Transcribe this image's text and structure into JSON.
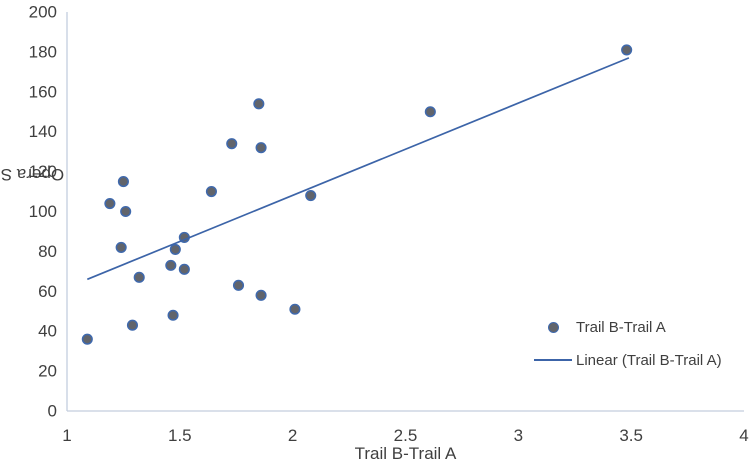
{
  "chart_data": {
    "type": "scatter",
    "title": "",
    "xlabel": "Trail B-Trail A",
    "ylabel": "Opera SDNN",
    "xlim": [
      1,
      4
    ],
    "ylim": [
      0,
      200
    ],
    "grid": false,
    "legend_position": "middle-right",
    "x_ticks": {
      "values": [
        1,
        1.5,
        2,
        2.5,
        3,
        3.5,
        4
      ],
      "labels": [
        "1",
        "1.5",
        "2",
        "2.5",
        "3",
        "3.5",
        "4"
      ]
    },
    "y_ticks": {
      "values": [
        0,
        20,
        40,
        60,
        80,
        100,
        120,
        140,
        160,
        180,
        200
      ],
      "labels": [
        "0",
        "20",
        "40",
        "60",
        "80",
        "100",
        "120",
        "140",
        "160",
        "180",
        "200"
      ]
    },
    "series": [
      {
        "name": "Trail B-Trail A",
        "kind": "scatter",
        "points": [
          [
            1.09,
            36
          ],
          [
            1.19,
            104
          ],
          [
            1.24,
            82
          ],
          [
            1.25,
            115
          ],
          [
            1.26,
            100
          ],
          [
            1.29,
            43
          ],
          [
            1.32,
            67
          ],
          [
            1.46,
            73
          ],
          [
            1.47,
            48
          ],
          [
            1.48,
            81
          ],
          [
            1.52,
            87
          ],
          [
            1.52,
            71
          ],
          [
            1.64,
            110
          ],
          [
            1.73,
            134
          ],
          [
            1.76,
            63
          ],
          [
            1.85,
            154
          ],
          [
            1.86,
            58
          ],
          [
            1.86,
            132
          ],
          [
            2.01,
            51
          ],
          [
            2.08,
            108
          ],
          [
            2.61,
            150
          ],
          [
            3.48,
            181
          ]
        ]
      },
      {
        "name": "Linear (Trail B-Trail A)",
        "kind": "line",
        "points": [
          [
            1.09,
            66
          ],
          [
            3.49,
            177
          ]
        ]
      }
    ],
    "colors": {
      "marker_fill": "#61646b",
      "marker_stroke": "#3f69ad",
      "trend_line": "#3c64a8",
      "axis_line": "#c3cede",
      "text": "#3f3f3f"
    }
  }
}
